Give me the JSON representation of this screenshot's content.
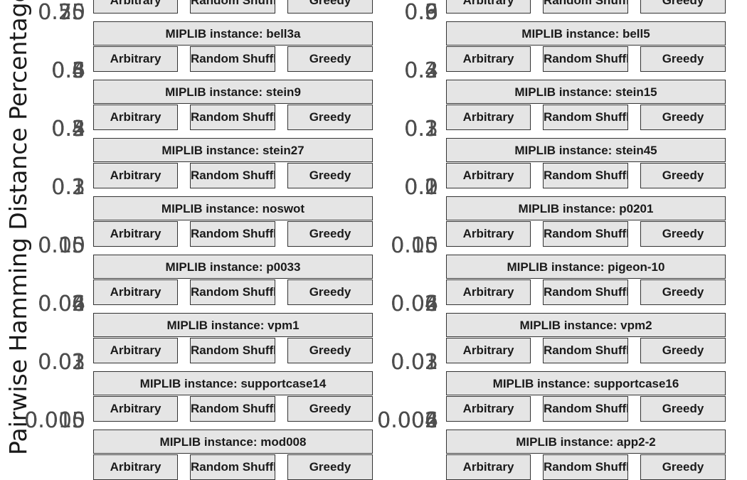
{
  "chart_data": {
    "type": "faceted",
    "ylabel": "Pairwise Hamming Distance Percentage",
    "methods": [
      "Arbitrary",
      "Random Shuffle",
      "Greedy"
    ],
    "facets_left": [
      "",
      "MIPLIB instance: bell3a",
      "MIPLIB instance: stein9",
      "MIPLIB instance: stein27",
      "MIPLIB instance: noswot",
      "MIPLIB instance: p0033",
      "MIPLIB instance: vpm1",
      "MIPLIB instance: supportcase14",
      "MIPLIB instance: mod008"
    ],
    "facets_right": [
      "",
      "MIPLIB instance: bell5",
      "MIPLIB instance: stein15",
      "MIPLIB instance: stein45",
      "MIPLIB instance: p0201",
      "MIPLIB instance: pigeon-10",
      "MIPLIB instance: vpm2",
      "MIPLIB instance: supportcase16",
      "MIPLIB instance: app2-2"
    ],
    "ticks_left": [
      [
        "0.25",
        "0.50",
        "0.75"
      ],
      [
        "0.3",
        "0.4",
        "0.5",
        "0.6"
      ],
      [
        "0.2",
        "0.3",
        "0.4",
        "0.5"
      ],
      [
        "0.1",
        "0.2",
        "0.3"
      ],
      [
        "0.05",
        "0.10",
        "0.15"
      ],
      [
        "0.02",
        "0.04",
        "0.06"
      ],
      [
        "0.01",
        "0.02",
        "0.03"
      ],
      [
        "0.005",
        "0.010",
        "0.015"
      ]
    ],
    "ticks_right": [
      [
        "0.3",
        "0.6",
        "0.9"
      ],
      [
        "0.2",
        "0.3",
        "0.4"
      ],
      [
        "0.1",
        "0.2",
        "0.3"
      ],
      [
        "0.0",
        "0.1",
        "0.2"
      ],
      [
        "0.05",
        "0.10",
        "0.15"
      ],
      [
        "0.02",
        "0.04",
        "0.06"
      ],
      [
        "0.01",
        "0.02",
        "0.03"
      ],
      [
        "0.002",
        "0.004",
        "0.006"
      ]
    ]
  }
}
